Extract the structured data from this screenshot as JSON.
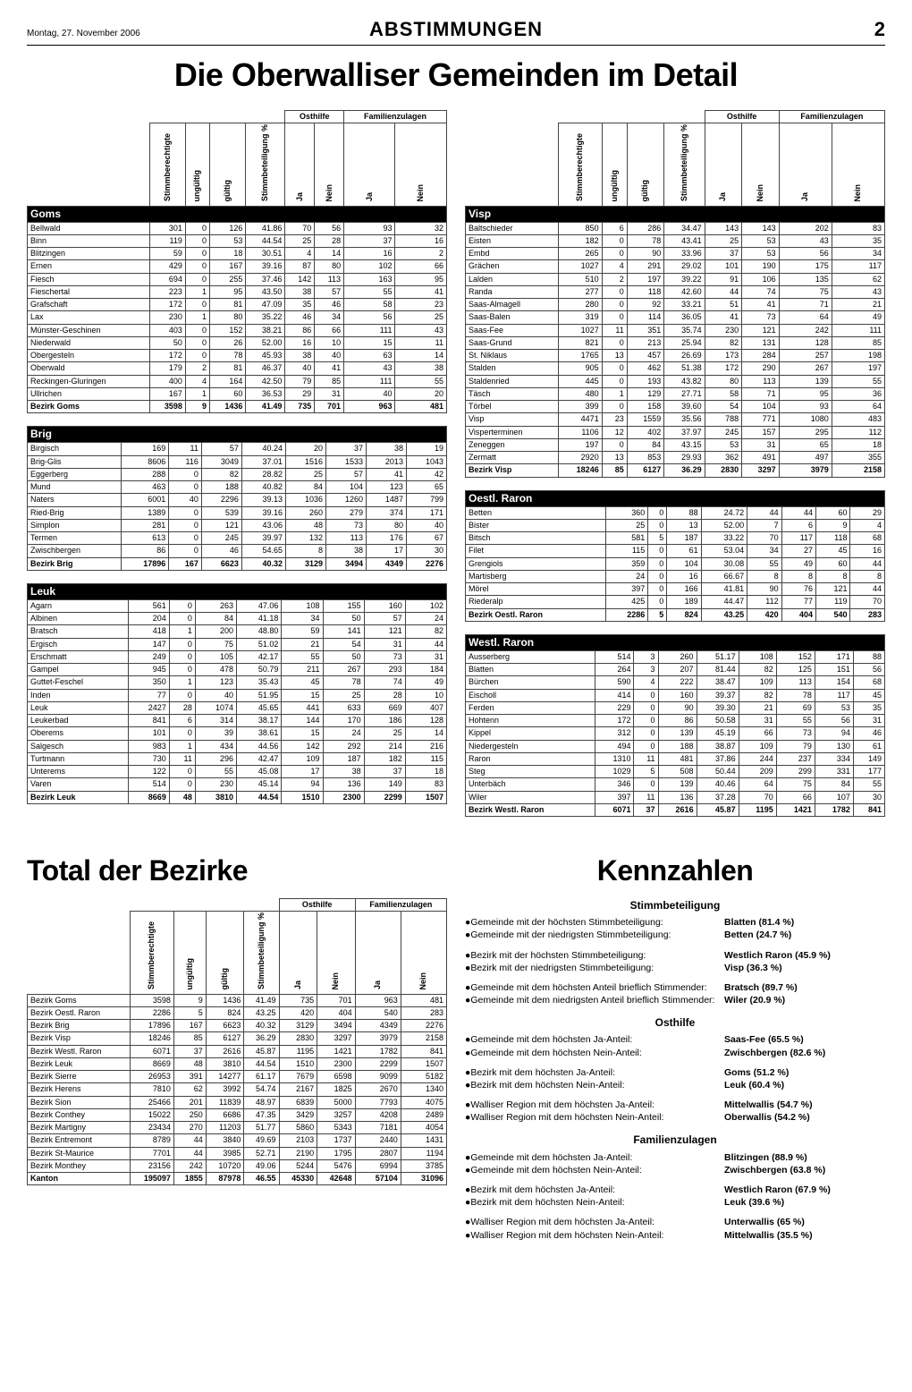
{
  "masthead": {
    "date": "Montag, 27. November 2006",
    "section": "ABSTIMMUNGEN",
    "page": "2"
  },
  "h1_main": "Die Oberwalliser Gemeinden im Detail",
  "h1_total": "Total der Bezirke",
  "h1_kenn": "Kennzahlen",
  "colheads": [
    "Stimmberechtigte",
    "ungültig",
    "gültig",
    "Stimmbeteiligung %",
    "Ja",
    "Nein",
    "Ja",
    "Nein"
  ],
  "topgroups": {
    "ost": "Osthilfe",
    "fam": "Familienzulagen"
  },
  "regions_left": [
    {
      "name": "Goms",
      "rows": [
        [
          "Bellwald",
          301,
          0,
          126,
          "41.86",
          70,
          56,
          93,
          32
        ],
        [
          "Binn",
          119,
          0,
          53,
          "44.54",
          25,
          28,
          37,
          16
        ],
        [
          "Blitzingen",
          59,
          0,
          18,
          "30.51",
          4,
          14,
          16,
          2
        ],
        [
          "Ernen",
          429,
          0,
          167,
          "39.16",
          87,
          80,
          102,
          66
        ],
        [
          "Fiesch",
          694,
          0,
          255,
          "37.46",
          142,
          113,
          163,
          95
        ],
        [
          "Fieschertal",
          223,
          1,
          95,
          "43.50",
          38,
          57,
          55,
          41
        ],
        [
          "Grafschaft",
          172,
          0,
          81,
          "47.09",
          35,
          46,
          58,
          23
        ],
        [
          "Lax",
          230,
          1,
          80,
          "35.22",
          46,
          34,
          56,
          25
        ],
        [
          "Münster-Geschinen",
          403,
          0,
          152,
          "38.21",
          86,
          66,
          111,
          43
        ],
        [
          "Niederwald",
          50,
          0,
          26,
          "52.00",
          16,
          10,
          15,
          11
        ],
        [
          "Obergesteln",
          172,
          0,
          78,
          "45.93",
          38,
          40,
          63,
          14
        ],
        [
          "Oberwald",
          179,
          2,
          81,
          "46.37",
          40,
          41,
          43,
          38
        ],
        [
          "Reckingen-Gluringen",
          400,
          4,
          164,
          "42.50",
          79,
          85,
          111,
          55
        ],
        [
          "Ullrichen",
          167,
          1,
          60,
          "36.53",
          29,
          31,
          40,
          20
        ]
      ],
      "total": [
        "Bezirk Goms",
        3598,
        9,
        1436,
        "41.49",
        735,
        701,
        963,
        481
      ]
    },
    {
      "name": "Brig",
      "rows": [
        [
          "Birgisch",
          169,
          11,
          57,
          "40.24",
          20,
          37,
          38,
          19
        ],
        [
          "Brig-Glis",
          8606,
          116,
          3049,
          "37.01",
          1516,
          1533,
          2013,
          1043
        ],
        [
          "Eggerberg",
          288,
          0,
          82,
          "28.82",
          25,
          57,
          41,
          42
        ],
        [
          "Mund",
          463,
          0,
          188,
          "40.82",
          84,
          104,
          123,
          65
        ],
        [
          "Naters",
          6001,
          40,
          2296,
          "39.13",
          1036,
          1260,
          1487,
          799
        ],
        [
          "Ried-Brig",
          1389,
          0,
          539,
          "39.16",
          260,
          279,
          374,
          171
        ],
        [
          "Simplon",
          281,
          0,
          121,
          "43.06",
          48,
          73,
          80,
          40
        ],
        [
          "Termen",
          613,
          0,
          245,
          "39.97",
          132,
          113,
          176,
          67
        ],
        [
          "Zwischbergen",
          86,
          0,
          46,
          "54.65",
          8,
          38,
          17,
          30
        ]
      ],
      "total": [
        "Bezirk Brig",
        17896,
        167,
        6623,
        "40.32",
        3129,
        3494,
        4349,
        2276
      ]
    },
    {
      "name": "Leuk",
      "rows": [
        [
          "Agarn",
          561,
          0,
          263,
          "47.06",
          108,
          155,
          160,
          102
        ],
        [
          "Albinen",
          204,
          0,
          84,
          "41.18",
          34,
          50,
          57,
          24
        ],
        [
          "Bratsch",
          418,
          1,
          200,
          "48.80",
          59,
          141,
          121,
          82
        ],
        [
          "Ergisch",
          147,
          0,
          75,
          "51.02",
          21,
          54,
          31,
          44
        ],
        [
          "Erschmatt",
          249,
          0,
          105,
          "42.17",
          55,
          50,
          73,
          31
        ],
        [
          "Gampel",
          945,
          0,
          478,
          "50.79",
          211,
          267,
          293,
          184
        ],
        [
          "Guttet-Feschel",
          350,
          1,
          123,
          "35.43",
          45,
          78,
          74,
          49
        ],
        [
          "Inden",
          77,
          0,
          40,
          "51.95",
          15,
          25,
          28,
          10
        ],
        [
          "Leuk",
          2427,
          28,
          1074,
          "45.65",
          441,
          633,
          669,
          407
        ],
        [
          "Leukerbad",
          841,
          6,
          314,
          "38.17",
          144,
          170,
          186,
          128
        ],
        [
          "Oberems",
          101,
          0,
          39,
          "38.61",
          15,
          24,
          25,
          14
        ],
        [
          "Salgesch",
          983,
          1,
          434,
          "44.56",
          142,
          292,
          214,
          216
        ],
        [
          "Turtmann",
          730,
          11,
          296,
          "42.47",
          109,
          187,
          182,
          115
        ],
        [
          "Unterems",
          122,
          0,
          55,
          "45.08",
          17,
          38,
          37,
          18
        ],
        [
          "Varen",
          514,
          0,
          230,
          "45.14",
          94,
          136,
          149,
          83
        ]
      ],
      "total": [
        "Bezirk Leuk",
        8669,
        48,
        3810,
        "44.54",
        1510,
        2300,
        2299,
        1507
      ]
    }
  ],
  "regions_right": [
    {
      "name": "Visp",
      "rows": [
        [
          "Baltschieder",
          850,
          6,
          286,
          "34.47",
          143,
          143,
          202,
          83
        ],
        [
          "Eisten",
          182,
          0,
          78,
          "43.41",
          25,
          53,
          43,
          35
        ],
        [
          "Embd",
          265,
          0,
          90,
          "33.96",
          37,
          53,
          56,
          34
        ],
        [
          "Grächen",
          1027,
          4,
          291,
          "29.02",
          101,
          190,
          175,
          117
        ],
        [
          "Lalden",
          510,
          2,
          197,
          "39.22",
          91,
          106,
          135,
          62
        ],
        [
          "Randa",
          277,
          0,
          118,
          "42.60",
          44,
          74,
          75,
          43
        ],
        [
          "Saas-Almagell",
          280,
          0,
          92,
          "33.21",
          51,
          41,
          71,
          21
        ],
        [
          "Saas-Balen",
          319,
          0,
          114,
          "36.05",
          41,
          73,
          64,
          49
        ],
        [
          "Saas-Fee",
          1027,
          11,
          351,
          "35.74",
          230,
          121,
          242,
          111
        ],
        [
          "Saas-Grund",
          821,
          0,
          213,
          "25.94",
          82,
          131,
          128,
          85
        ],
        [
          "St. Niklaus",
          1765,
          13,
          457,
          "26.69",
          173,
          284,
          257,
          198
        ],
        [
          "Stalden",
          905,
          0,
          462,
          "51.38",
          172,
          290,
          267,
          197
        ],
        [
          "Staldenried",
          445,
          0,
          193,
          "43.82",
          80,
          113,
          139,
          55
        ],
        [
          "Täsch",
          480,
          1,
          129,
          "27.71",
          58,
          71,
          95,
          36
        ],
        [
          "Törbel",
          399,
          0,
          158,
          "39.60",
          54,
          104,
          93,
          64
        ],
        [
          "Visp",
          4471,
          23,
          1559,
          "35.56",
          788,
          771,
          1080,
          483
        ],
        [
          "Visperterminen",
          1106,
          12,
          402,
          "37.97",
          245,
          157,
          295,
          112
        ],
        [
          "Zeneggen",
          197,
          0,
          84,
          "43.15",
          53,
          31,
          65,
          18
        ],
        [
          "Zermatt",
          2920,
          13,
          853,
          "29.93",
          362,
          491,
          497,
          355
        ]
      ],
      "total": [
        "Bezirk Visp",
        18246,
        85,
        6127,
        "36.29",
        2830,
        3297,
        3979,
        2158
      ]
    },
    {
      "name": "Oestl. Raron",
      "rows": [
        [
          "Betten",
          360,
          0,
          88,
          "24.72",
          44,
          44,
          60,
          29
        ],
        [
          "Bister",
          25,
          0,
          13,
          "52.00",
          7,
          6,
          9,
          4
        ],
        [
          "Bitsch",
          581,
          5,
          187,
          "33.22",
          70,
          117,
          118,
          68
        ],
        [
          "Filet",
          115,
          0,
          61,
          "53.04",
          34,
          27,
          45,
          16
        ],
        [
          "Grengiols",
          359,
          0,
          104,
          "30.08",
          55,
          49,
          60,
          44
        ],
        [
          "Martisberg",
          24,
          0,
          16,
          "66.67",
          8,
          8,
          8,
          8
        ],
        [
          "Mörel",
          397,
          0,
          166,
          "41.81",
          90,
          76,
          121,
          44
        ],
        [
          "Riederalp",
          425,
          0,
          189,
          "44.47",
          112,
          77,
          119,
          70
        ]
      ],
      "total": [
        "Bezirk Oestl. Raron",
        2286,
        5,
        824,
        "43.25",
        420,
        404,
        540,
        283
      ]
    },
    {
      "name": "Westl. Raron",
      "rows": [
        [
          "Ausserberg",
          514,
          3,
          260,
          "51.17",
          108,
          152,
          171,
          88
        ],
        [
          "Blatten",
          264,
          3,
          207,
          "81.44",
          82,
          125,
          151,
          56
        ],
        [
          "Bürchen",
          590,
          4,
          222,
          "38.47",
          109,
          113,
          154,
          68
        ],
        [
          "Eischoll",
          414,
          0,
          160,
          "39.37",
          82,
          78,
          117,
          45
        ],
        [
          "Ferden",
          229,
          0,
          90,
          "39.30",
          21,
          69,
          53,
          35
        ],
        [
          "Hohtenn",
          172,
          0,
          86,
          "50.58",
          31,
          55,
          56,
          31
        ],
        [
          "Kippel",
          312,
          0,
          139,
          "45.19",
          66,
          73,
          94,
          46
        ],
        [
          "Niedergesteln",
          494,
          0,
          188,
          "38.87",
          109,
          79,
          130,
          61
        ],
        [
          "Raron",
          1310,
          11,
          481,
          "37.86",
          244,
          237,
          334,
          149
        ],
        [
          "Steg",
          1029,
          5,
          508,
          "50.44",
          209,
          299,
          331,
          177
        ],
        [
          "Unterbäch",
          346,
          0,
          139,
          "40.46",
          64,
          75,
          84,
          55
        ],
        [
          "Wiler",
          397,
          11,
          136,
          "37.28",
          70,
          66,
          107,
          30
        ]
      ],
      "total": [
        "Bezirk Westl. Raron",
        6071,
        37,
        2616,
        "45.87",
        1195,
        1421,
        1782,
        841
      ]
    }
  ],
  "bezirke_total": {
    "rows": [
      [
        "Bezirk Goms",
        3598,
        9,
        1436,
        "41.49",
        735,
        701,
        963,
        481
      ],
      [
        "Bezirk Oestl. Raron",
        2286,
        5,
        824,
        "43.25",
        420,
        404,
        540,
        283
      ],
      [
        "Bezirk Brig",
        17896,
        167,
        6623,
        "40.32",
        3129,
        3494,
        4349,
        2276
      ],
      [
        "Bezirk Visp",
        18246,
        85,
        6127,
        "36.29",
        2830,
        3297,
        3979,
        2158
      ],
      [
        "Bezirk Westl. Raron",
        6071,
        37,
        2616,
        "45.87",
        1195,
        1421,
        1782,
        841
      ],
      [
        "Bezirk Leuk",
        8669,
        48,
        3810,
        "44.54",
        1510,
        2300,
        2299,
        1507
      ],
      [
        "Bezirk Sierre",
        26953,
        391,
        14277,
        "61.17",
        7679,
        6598,
        9099,
        5182
      ],
      [
        "Bezirk Herens",
        7810,
        62,
        3992,
        "54.74",
        2167,
        1825,
        2670,
        1340
      ],
      [
        "Bezirk Sion",
        25466,
        201,
        11839,
        "48.97",
        6839,
        5000,
        7793,
        4075
      ],
      [
        "Bezirk Conthey",
        15022,
        250,
        6686,
        "47.35",
        3429,
        3257,
        4208,
        2489
      ],
      [
        "Bezirk Martigny",
        23434,
        270,
        11203,
        "51.77",
        5860,
        5343,
        7181,
        4054
      ],
      [
        "Bezirk Entremont",
        8789,
        44,
        3840,
        "49.69",
        2103,
        1737,
        2440,
        1431
      ],
      [
        "Bezirk St-Maurice",
        7701,
        44,
        3985,
        "52.71",
        2190,
        1795,
        2807,
        1194
      ],
      [
        "Bezirk Monthey",
        23156,
        242,
        10720,
        "49.06",
        5244,
        5476,
        6994,
        3785
      ]
    ],
    "total": [
      "Kanton",
      195097,
      1855,
      87978,
      "46.55",
      45330,
      42648,
      57104,
      31096
    ]
  },
  "kenn": {
    "sections": [
      {
        "title": "Stimmbeteiligung",
        "items": [
          [
            "Gemeinde mit der höchsten Stimmbeteiligung:",
            "Blatten (81.4 %)"
          ],
          [
            "Gemeinde mit der niedrigsten Stimmbeteiligung:",
            "Betten (24.7 %)"
          ],
          [],
          [
            "Bezirk mit der höchsten Stimmbeteiligung:",
            "Westlich Raron (45.9 %)"
          ],
          [
            "Bezirk mit der niedrigsten Stimmbeteiligung:",
            "Visp (36.3 %)"
          ],
          [],
          [
            "Gemeinde mit dem höchsten Anteil brieflich Stimmender:",
            "Bratsch (89.7 %)"
          ],
          [
            "Gemeinde mit dem niedrigsten Anteil brieflich Stimmender:",
            "Wiler (20.9 %)"
          ]
        ]
      },
      {
        "title": "Osthilfe",
        "items": [
          [
            "Gemeinde mit dem höchsten Ja-Anteil:",
            "Saas-Fee (65.5 %)"
          ],
          [
            "Gemeinde mit dem höchsten Nein-Anteil:",
            "Zwischbergen (82.6 %)"
          ],
          [],
          [
            "Bezirk mit dem höchsten Ja-Anteil:",
            "Goms (51.2 %)"
          ],
          [
            "Bezirk mit dem höchsten Nein-Anteil:",
            "Leuk (60.4 %)"
          ],
          [],
          [
            "Walliser Region mit dem höchsten Ja-Anteil:",
            "Mittelwallis (54.7 %)"
          ],
          [
            "Walliser Region mit dem höchsten Nein-Anteil:",
            "Oberwallis (54.2 %)"
          ]
        ]
      },
      {
        "title": "Familienzulagen",
        "items": [
          [
            "Gemeinde mit dem höchsten Ja-Anteil:",
            "Blitzingen (88.9 %)"
          ],
          [
            "Gemeinde mit dem höchsten Nein-Anteil:",
            "Zwischbergen (63.8 %)"
          ],
          [],
          [
            "Bezirk mit dem höchsten Ja-Anteil:",
            "Westlich Raron (67.9 %)"
          ],
          [
            "Bezirk mit dem höchsten Nein-Anteil:",
            "Leuk (39.6 %)"
          ],
          [],
          [
            "Walliser Region mit dem höchsten Ja-Anteil:",
            "Unterwallis (65 %)"
          ],
          [
            "Walliser Region mit dem höchsten Nein-Anteil:",
            "Mittelwallis (35.5 %)"
          ]
        ]
      }
    ]
  }
}
